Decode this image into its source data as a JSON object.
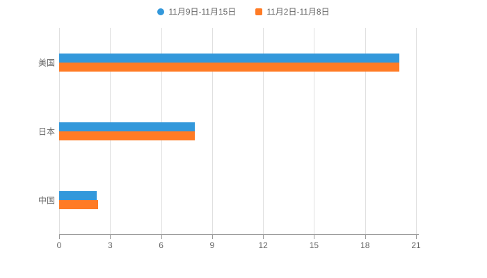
{
  "legend": {
    "items": [
      {
        "label": "11月9日-11月15日",
        "color": "#3398DB",
        "marker": "circle"
      },
      {
        "label": "11月2日-11月8日",
        "color": "#FF7B25",
        "marker": "square"
      }
    ]
  },
  "chart_data": {
    "type": "bar",
    "orientation": "horizontal",
    "title": "",
    "xlabel": "",
    "ylabel": "",
    "categories": [
      "美国",
      "日本",
      "中国"
    ],
    "series": [
      {
        "name": "11月9日-11月15日",
        "color": "#3398DB",
        "values": [
          20,
          8,
          2.2
        ]
      },
      {
        "name": "11月2日-11月8日",
        "color": "#FF7B25",
        "values": [
          20,
          8,
          2.3
        ]
      }
    ],
    "xlim": [
      0,
      21
    ],
    "xticks": [
      0,
      3,
      6,
      9,
      12,
      15,
      18,
      21
    ],
    "grid": true,
    "legend_position": "top",
    "axis_color": "#9a9a9a",
    "gridline_color": "#e0e0e0",
    "label_color": "#666666"
  }
}
